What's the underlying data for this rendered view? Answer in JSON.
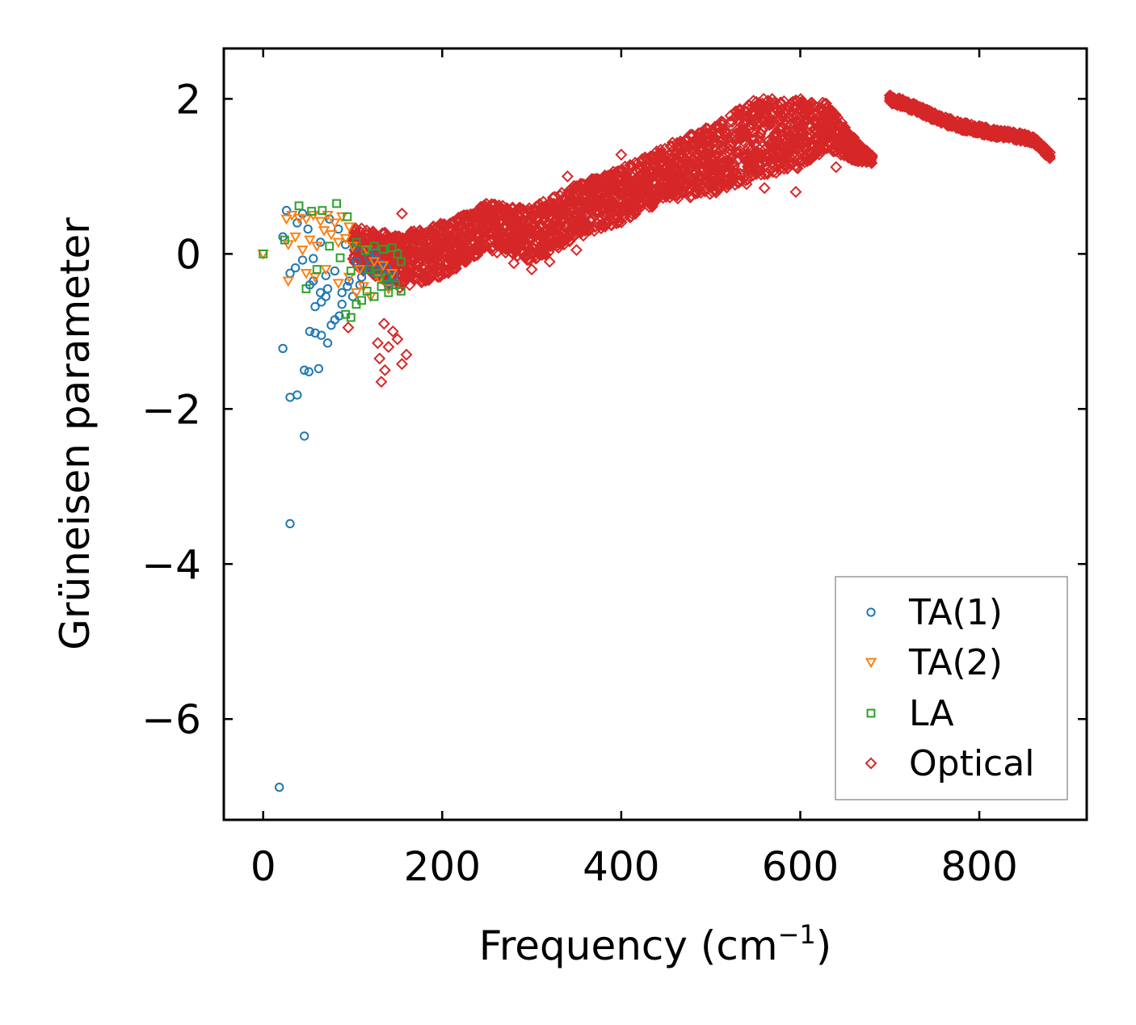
{
  "chart_data": {
    "type": "scatter",
    "title": "",
    "xlabel": "Frequency (cm",
    "xlabel_sup": "−1",
    "xlabel_end": ")",
    "ylabel": "Grüneisen parameter",
    "xlim": [
      -44,
      920
    ],
    "ylim": [
      -7.3,
      2.65
    ],
    "xticks": [
      0,
      200,
      400,
      600,
      800
    ],
    "yticks": [
      2,
      0,
      -2,
      -4,
      -6
    ],
    "xtick_labels": [
      "0",
      "200",
      "400",
      "600",
      "800"
    ],
    "ytick_labels": [
      "2",
      "0",
      "−2",
      "−4",
      "−6"
    ],
    "legend_position": "lower-right",
    "series": [
      {
        "name": "TA(1)",
        "label": "TA(1)",
        "color": "#1f77b4",
        "marker": "circle",
        "points": [
          [
            18,
            -6.88
          ],
          [
            30,
            -3.48
          ],
          [
            46,
            -2.35
          ],
          [
            30,
            -1.85
          ],
          [
            38,
            -1.82
          ],
          [
            22,
            -1.22
          ],
          [
            46,
            -1.5
          ],
          [
            51,
            -1.52
          ],
          [
            62,
            -1.48
          ],
          [
            52,
            -1.0
          ],
          [
            58,
            -1.02
          ],
          [
            65,
            -1.05
          ],
          [
            72,
            -1.15
          ],
          [
            76,
            -0.92
          ],
          [
            80,
            -0.85
          ],
          [
            85,
            -0.8
          ],
          [
            58,
            -0.68
          ],
          [
            65,
            -0.62
          ],
          [
            70,
            -0.55
          ],
          [
            52,
            -0.4
          ],
          [
            56,
            -0.35
          ],
          [
            64,
            -0.5
          ],
          [
            72,
            -0.45
          ],
          [
            88,
            -0.65
          ],
          [
            30,
            -0.25
          ],
          [
            36,
            -0.18
          ],
          [
            44,
            -0.08
          ],
          [
            56,
            -0.06
          ],
          [
            22,
            0.22
          ],
          [
            26,
            0.56
          ],
          [
            38,
            0.4
          ],
          [
            44,
            0.52
          ],
          [
            50,
            0.32
          ],
          [
            64,
            0.15
          ],
          [
            74,
            0.45
          ],
          [
            84,
            0.32
          ],
          [
            92,
            0.12
          ],
          [
            70,
            -0.28
          ],
          [
            80,
            -0.22
          ],
          [
            96,
            -0.35
          ],
          [
            104,
            -0.1
          ],
          [
            112,
            -0.2
          ],
          [
            118,
            -0.05
          ],
          [
            124,
            -0.25
          ],
          [
            130,
            -0.12
          ],
          [
            136,
            -0.3
          ],
          [
            142,
            -0.38
          ],
          [
            146,
            -0.28
          ],
          [
            108,
            -0.4
          ],
          [
            114,
            0.05
          ],
          [
            120,
            -0.15
          ],
          [
            126,
            0.02
          ],
          [
            132,
            -0.22
          ],
          [
            138,
            -0.18
          ],
          [
            102,
            0.08
          ],
          [
            94,
            -0.42
          ],
          [
            88,
            -0.5
          ],
          [
            100,
            -0.55
          ],
          [
            110,
            -0.3
          ],
          [
            140,
            -0.42
          ]
        ]
      },
      {
        "name": "TA(2)",
        "label": "TA(2)",
        "color": "#ff7f0e",
        "marker": "triangle-down",
        "points": [
          [
            0,
            0.0
          ],
          [
            26,
            0.45
          ],
          [
            32,
            0.5
          ],
          [
            40,
            0.46
          ],
          [
            48,
            0.45
          ],
          [
            56,
            0.5
          ],
          [
            64,
            0.42
          ],
          [
            72,
            0.5
          ],
          [
            80,
            0.4
          ],
          [
            88,
            0.48
          ],
          [
            96,
            0.35
          ],
          [
            28,
            0.12
          ],
          [
            36,
            0.22
          ],
          [
            44,
            0.05
          ],
          [
            52,
            0.18
          ],
          [
            60,
            0.1
          ],
          [
            68,
            0.3
          ],
          [
            76,
            0.25
          ],
          [
            84,
            0.15
          ],
          [
            92,
            0.2
          ],
          [
            100,
            0.1
          ],
          [
            28,
            -0.35
          ],
          [
            48,
            -0.25
          ],
          [
            58,
            -0.3
          ],
          [
            70,
            -0.2
          ],
          [
            84,
            -0.38
          ],
          [
            96,
            -0.3
          ],
          [
            104,
            -0.5
          ],
          [
            112,
            -0.42
          ],
          [
            120,
            -0.55
          ],
          [
            130,
            -0.32
          ],
          [
            140,
            -0.45
          ],
          [
            108,
            -0.2
          ],
          [
            116,
            0.05
          ],
          [
            124,
            -0.1
          ],
          [
            134,
            -0.15
          ],
          [
            144,
            -0.25
          ]
        ]
      },
      {
        "name": "LA",
        "label": "LA",
        "color": "#2ca02c",
        "marker": "square",
        "points": [
          [
            0,
            0.0
          ],
          [
            24,
            0.18
          ],
          [
            40,
            0.62
          ],
          [
            54,
            0.55
          ],
          [
            66,
            0.56
          ],
          [
            82,
            0.65
          ],
          [
            94,
            0.48
          ],
          [
            48,
            -0.45
          ],
          [
            60,
            -0.2
          ],
          [
            74,
            0.1
          ],
          [
            86,
            -0.05
          ],
          [
            98,
            -0.22
          ],
          [
            92,
            -0.78
          ],
          [
            98,
            -0.82
          ],
          [
            104,
            -0.65
          ],
          [
            110,
            -0.6
          ],
          [
            116,
            -0.48
          ],
          [
            124,
            -0.55
          ],
          [
            132,
            -0.42
          ],
          [
            140,
            -0.5
          ],
          [
            148,
            -0.4
          ],
          [
            154,
            -0.48
          ],
          [
            154,
            -0.1
          ],
          [
            150,
            0.0
          ],
          [
            144,
            0.08
          ],
          [
            134,
            0.06
          ],
          [
            124,
            0.1
          ],
          [
            114,
            0.04
          ],
          [
            104,
            0.15
          ],
          [
            118,
            -0.2
          ],
          [
            128,
            -0.25
          ],
          [
            138,
            -0.3
          ]
        ]
      },
      {
        "name": "Optical",
        "label": "Optical",
        "color": "#d62728",
        "marker": "diamond",
        "band_center": [
          [
            100,
            0.1
          ],
          [
            150,
            -0.1
          ],
          [
            200,
            0.05
          ],
          [
            250,
            0.35
          ],
          [
            300,
            0.25
          ],
          [
            350,
            0.55
          ],
          [
            400,
            0.75
          ],
          [
            450,
            1.05
          ],
          [
            500,
            1.2
          ],
          [
            550,
            1.5
          ],
          [
            600,
            1.55
          ],
          [
            630,
            1.65
          ],
          [
            660,
            1.35
          ],
          [
            680,
            1.22
          ]
        ],
        "band_halfwidth": [
          [
            100,
            0.25
          ],
          [
            150,
            0.35
          ],
          [
            200,
            0.35
          ],
          [
            250,
            0.3
          ],
          [
            300,
            0.35
          ],
          [
            350,
            0.35
          ],
          [
            400,
            0.35
          ],
          [
            450,
            0.35
          ],
          [
            500,
            0.45
          ],
          [
            550,
            0.5
          ],
          [
            600,
            0.45
          ],
          [
            630,
            0.3
          ],
          [
            660,
            0.15
          ],
          [
            680,
            0.05
          ]
        ],
        "high_branch": [
          [
            700,
            2.0
          ],
          [
            720,
            1.92
          ],
          [
            740,
            1.82
          ],
          [
            760,
            1.72
          ],
          [
            780,
            1.65
          ],
          [
            800,
            1.6
          ],
          [
            820,
            1.55
          ],
          [
            840,
            1.52
          ],
          [
            860,
            1.48
          ],
          [
            880,
            1.25
          ]
        ],
        "outliers": [
          [
            95,
            -0.95
          ],
          [
            130,
            -1.35
          ],
          [
            132,
            -1.65
          ],
          [
            136,
            -1.5
          ],
          [
            140,
            -1.2
          ],
          [
            145,
            -1.0
          ],
          [
            150,
            -1.1
          ],
          [
            155,
            -1.42
          ],
          [
            160,
            -1.3
          ],
          [
            128,
            -1.15
          ],
          [
            135,
            -0.9
          ],
          [
            155,
            0.52
          ],
          [
            340,
            1.0
          ],
          [
            380,
            0.98
          ],
          [
            400,
            1.28
          ],
          [
            430,
            1.0
          ],
          [
            460,
            0.82
          ],
          [
            500,
            0.95
          ],
          [
            540,
            0.9
          ],
          [
            560,
            0.85
          ],
          [
            595,
            0.8
          ],
          [
            610,
            1.3
          ],
          [
            640,
            1.12
          ],
          [
            320,
            -0.1
          ],
          [
            300,
            -0.2
          ],
          [
            350,
            0.05
          ],
          [
            280,
            -0.12
          ]
        ]
      }
    ]
  }
}
